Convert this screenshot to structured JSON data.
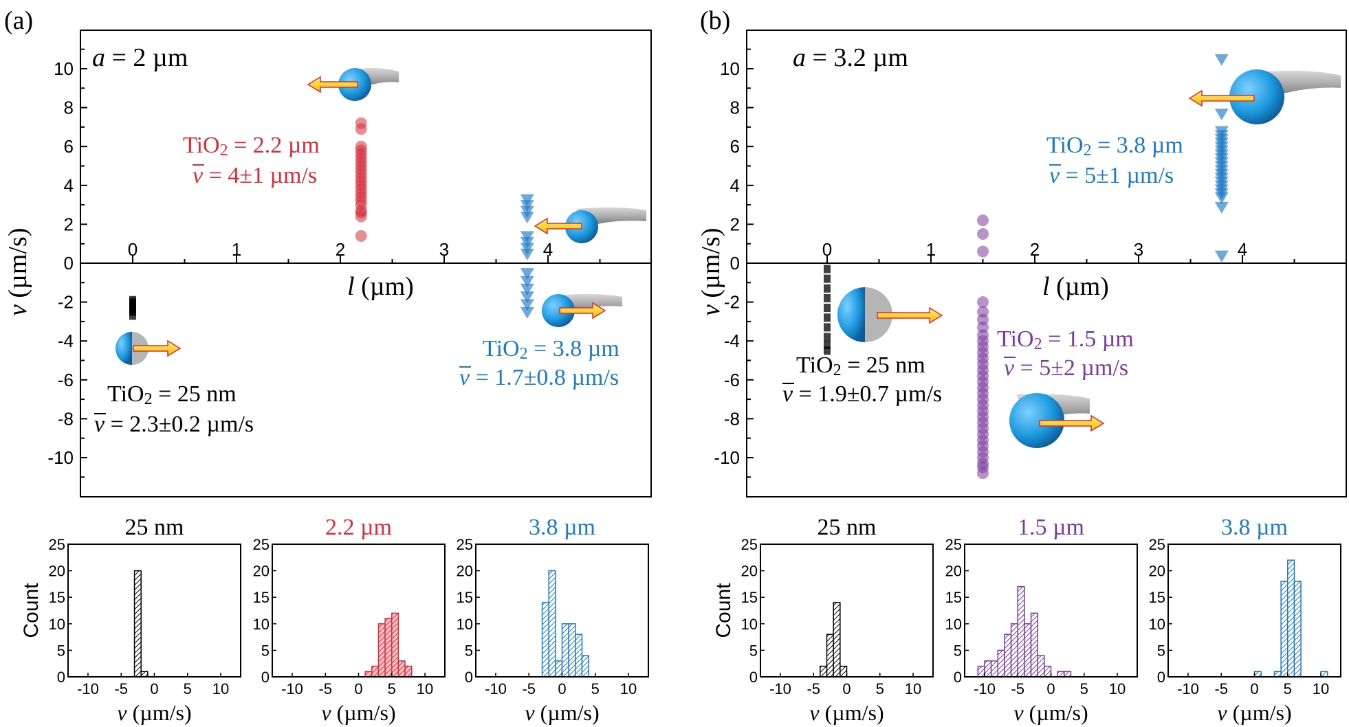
{
  "panels": [
    {
      "label": "(a)",
      "a_text": "a = 2 µm",
      "a_sym": "a",
      "a_val": " = 2 µm",
      "x_label_var": "l",
      "x_label_unit": " (µm)",
      "y_label_var": "v",
      "y_label_unit": " (µm/s)"
    },
    {
      "label": "(b)",
      "a_text": "a = 3.2 µm",
      "a_sym": "a",
      "a_val": " = 3.2 µm",
      "x_label_var": "l",
      "x_label_unit": " (µm)",
      "y_label_var": "v",
      "y_label_unit": " (µm/s)"
    }
  ],
  "chart_data": [
    {
      "panel": "(a)",
      "type": "scatter",
      "title": "a = 2 µm",
      "xlabel": "l (µm)",
      "ylabel": "v (µm/s)",
      "xlim": [
        -0.5,
        5
      ],
      "ylim": [
        -12,
        12
      ],
      "xticks": [
        0,
        1,
        2,
        3,
        4
      ],
      "yticks": [
        -10,
        -8,
        -6,
        -4,
        -2,
        0,
        2,
        4,
        6,
        8,
        10
      ],
      "series": [
        {
          "color": "#000000",
          "marker": "square",
          "x": [
            0,
            0,
            0,
            0,
            0,
            0,
            0,
            0
          ],
          "y": [
            -1.9,
            -2.0,
            -2.1,
            -2.2,
            -2.3,
            -2.4,
            -2.5,
            -2.7
          ]
        },
        {
          "color": "#d62f3c",
          "marker": "circle",
          "x": [
            2.2,
            2.2,
            2.2,
            2.2,
            2.2,
            2.2,
            2.2,
            2.2,
            2.2,
            2.2,
            2.2,
            2.2,
            2.2,
            2.2,
            2.2,
            2.2,
            2.2,
            2.2,
            2.2,
            2.2,
            2.2,
            2.2
          ],
          "y": [
            7.2,
            6.9,
            6.0,
            5.8,
            5.6,
            5.4,
            5.2,
            5.0,
            4.8,
            4.6,
            4.4,
            4.2,
            4.0,
            3.8,
            3.6,
            3.4,
            3.2,
            3.0,
            2.7,
            2.6,
            2.4,
            1.4
          ]
        },
        {
          "color": "#1d7ac4",
          "marker": "triangle-down",
          "x": [
            3.8,
            3.8,
            3.8,
            3.8,
            3.8,
            3.8,
            3.8,
            3.8,
            3.8,
            3.8,
            3.8,
            3.8,
            3.8,
            3.8
          ],
          "y": [
            3.3,
            3.0,
            2.7,
            2.4,
            1.4,
            1.1,
            0.8,
            0.5,
            -0.5,
            -0.9,
            -1.3,
            -1.7,
            -2.1,
            -2.5
          ]
        }
      ],
      "annotations": [
        {
          "sub": "TiO",
          "sub2": "2",
          "rest": " = 2.2 µm",
          "mean": " = 4±1 µm/s",
          "vbar": "v",
          "color": "#d62f3c"
        },
        {
          "sub": "TiO",
          "sub2": "2",
          "rest": " = 3.8 µm",
          "mean": " = 1.7±0.8 µm/s",
          "vbar": "v",
          "color": "#1d7ac4"
        },
        {
          "sub": "TiO",
          "sub2": "2",
          "rest": " = 25 nm",
          "mean": " = 2.3±0.2 µm/s",
          "vbar": "v",
          "color": "#000000"
        }
      ]
    },
    {
      "panel": "(b)",
      "type": "scatter",
      "title": "a = 3.2 µm",
      "xlabel": "l (µm)",
      "ylabel": "v (µm/s)",
      "xlim": [
        -0.5,
        5
      ],
      "ylim": [
        -12,
        12
      ],
      "xticks": [
        0,
        1,
        2,
        3,
        4
      ],
      "yticks": [
        -10,
        -8,
        -6,
        -4,
        -2,
        0,
        2,
        4,
        6,
        8,
        10
      ],
      "series": [
        {
          "color": "#000000",
          "marker": "square",
          "x": [
            0,
            0,
            0,
            0,
            0,
            0,
            0,
            0,
            0,
            0
          ],
          "y": [
            -0.3,
            -0.8,
            -1.3,
            -1.8,
            -2.3,
            -2.8,
            -3.3,
            -3.8,
            -4.2,
            -4.5
          ]
        },
        {
          "color": "#7b3a9c",
          "marker": "circle",
          "x": [
            1.5,
            1.5,
            1.5,
            1.5,
            1.5,
            1.5,
            1.5,
            1.5,
            1.5,
            1.5,
            1.5,
            1.5,
            1.5,
            1.5,
            1.5,
            1.5,
            1.5,
            1.5,
            1.5,
            1.5,
            1.5,
            1.5,
            1.5,
            1.5,
            1.5,
            1.5,
            1.5,
            1.5,
            1.5,
            1.5,
            1.5,
            1.5
          ],
          "y": [
            2.2,
            1.5,
            0.6,
            -2.0,
            -2.5,
            -2.9,
            -3.3,
            -3.7,
            -4.0,
            -4.3,
            -4.6,
            -4.9,
            -5.2,
            -5.5,
            -5.8,
            -6.1,
            -6.4,
            -6.7,
            -7.0,
            -7.3,
            -7.6,
            -7.9,
            -8.2,
            -8.5,
            -8.8,
            -9.1,
            -9.4,
            -9.7,
            -10.0,
            -10.3,
            -10.5,
            -10.8
          ]
        },
        {
          "color": "#1d7ac4",
          "marker": "triangle-down",
          "x": [
            3.8,
            3.8,
            3.8,
            3.8,
            3.8,
            3.8,
            3.8,
            3.8,
            3.8,
            3.8,
            3.8,
            3.8,
            3.8,
            3.8,
            3.8,
            3.8,
            3.8,
            3.8,
            3.8,
            3.8,
            3.8,
            3.8
          ],
          "y": [
            10.5,
            7.7,
            6.8,
            6.6,
            6.4,
            6.2,
            6.0,
            5.8,
            5.6,
            5.4,
            5.2,
            5.0,
            4.8,
            4.6,
            4.4,
            4.2,
            4.0,
            3.8,
            3.6,
            3.4,
            2.9,
            0.4
          ]
        }
      ],
      "annotations": [
        {
          "sub": "TiO",
          "sub2": "2",
          "rest": " = 3.8 µm",
          "mean": " = 5±1 µm/s",
          "vbar": "v",
          "color": "#1d7ac4"
        },
        {
          "sub": "TiO",
          "sub2": "2",
          "rest": " = 1.5 µm",
          "mean": " = 5±2 µm/s",
          "vbar": "v",
          "color": "#7b3a9c"
        },
        {
          "sub": "TiO",
          "sub2": "2",
          "rest": " = 25 nm",
          "mean": " = 1.9±0.7 µm/s",
          "vbar": "v",
          "color": "#000000"
        }
      ]
    },
    {
      "panel": "(a) 25 nm",
      "type": "bar",
      "title": "25 nm",
      "color": "#000000",
      "xlabel": "v (µm/s)",
      "ylabel": "Count",
      "xlim": [
        -13,
        13
      ],
      "ylim": [
        0,
        25
      ],
      "bin_width": 1,
      "xticks": [
        -10,
        -5,
        0,
        5,
        10
      ],
      "yticks": [
        0,
        5,
        10,
        15,
        20,
        25
      ],
      "bins": [
        -3,
        -2
      ],
      "values": [
        20,
        1
      ]
    },
    {
      "panel": "(a) 2.2 µm",
      "type": "bar",
      "title": "2.2 µm",
      "color": "#d62f3c",
      "xlabel": "v (µm/s)",
      "ylabel": "",
      "xlim": [
        -13,
        13
      ],
      "ylim": [
        0,
        25
      ],
      "bin_width": 1,
      "xticks": [
        -10,
        -5,
        0,
        5,
        10
      ],
      "yticks": [
        0,
        5,
        10,
        15,
        20,
        25
      ],
      "bins": [
        1,
        2,
        3,
        4,
        5,
        6,
        7
      ],
      "values": [
        1,
        2,
        10,
        11,
        12,
        3,
        2
      ]
    },
    {
      "panel": "(a) 3.8 µm",
      "type": "bar",
      "title": "3.8 µm",
      "color": "#1d7ac4",
      "xlabel": "v (µm/s)",
      "ylabel": "",
      "xlim": [
        -13,
        13
      ],
      "ylim": [
        0,
        25
      ],
      "bin_width": 1,
      "xticks": [
        -10,
        -5,
        0,
        5,
        10
      ],
      "yticks": [
        0,
        5,
        10,
        15,
        20,
        25
      ],
      "bins": [
        -3,
        -2,
        -1,
        0,
        1,
        2,
        3
      ],
      "values": [
        14,
        20,
        3,
        10,
        10,
        8,
        4
      ]
    },
    {
      "panel": "(b) 25 nm",
      "type": "bar",
      "title": "25 nm",
      "color": "#000000",
      "xlabel": "v (µm/s)",
      "ylabel": "Count",
      "xlim": [
        -13,
        13
      ],
      "ylim": [
        0,
        25
      ],
      "bin_width": 1,
      "xticks": [
        -10,
        -5,
        0,
        5,
        10
      ],
      "yticks": [
        0,
        5,
        10,
        15,
        20,
        25
      ],
      "bins": [
        -4,
        -3,
        -2,
        -1
      ],
      "values": [
        2,
        8,
        14,
        2
      ]
    },
    {
      "panel": "(b) 1.5 µm",
      "type": "bar",
      "title": "1.5 µm",
      "color": "#7b3a9c",
      "xlabel": "v (µm/s)",
      "ylabel": "",
      "xlim": [
        -13,
        13
      ],
      "ylim": [
        0,
        25
      ],
      "bin_width": 1,
      "xticks": [
        -10,
        -5,
        0,
        5,
        10
      ],
      "yticks": [
        0,
        5,
        10,
        15,
        20,
        25
      ],
      "bins": [
        -11,
        -10,
        -9,
        -8,
        -7,
        -6,
        -5,
        -4,
        -3,
        -2,
        -1,
        0,
        1,
        2
      ],
      "values": [
        2,
        3,
        3,
        5,
        8,
        10,
        17,
        10,
        12,
        4,
        2,
        0,
        1,
        1
      ]
    },
    {
      "panel": "(b) 3.8 µm",
      "type": "bar",
      "title": "3.8 µm",
      "color": "#1d7ac4",
      "xlabel": "v (µm/s)",
      "ylabel": "",
      "xlim": [
        -13,
        13
      ],
      "ylim": [
        0,
        25
      ],
      "bin_width": 1,
      "xticks": [
        -10,
        -5,
        0,
        5,
        10
      ],
      "yticks": [
        0,
        5,
        10,
        15,
        20,
        25
      ],
      "bins": [
        0,
        3,
        4,
        5,
        6,
        10
      ],
      "values": [
        1,
        1,
        18,
        22,
        18,
        1
      ]
    }
  ]
}
